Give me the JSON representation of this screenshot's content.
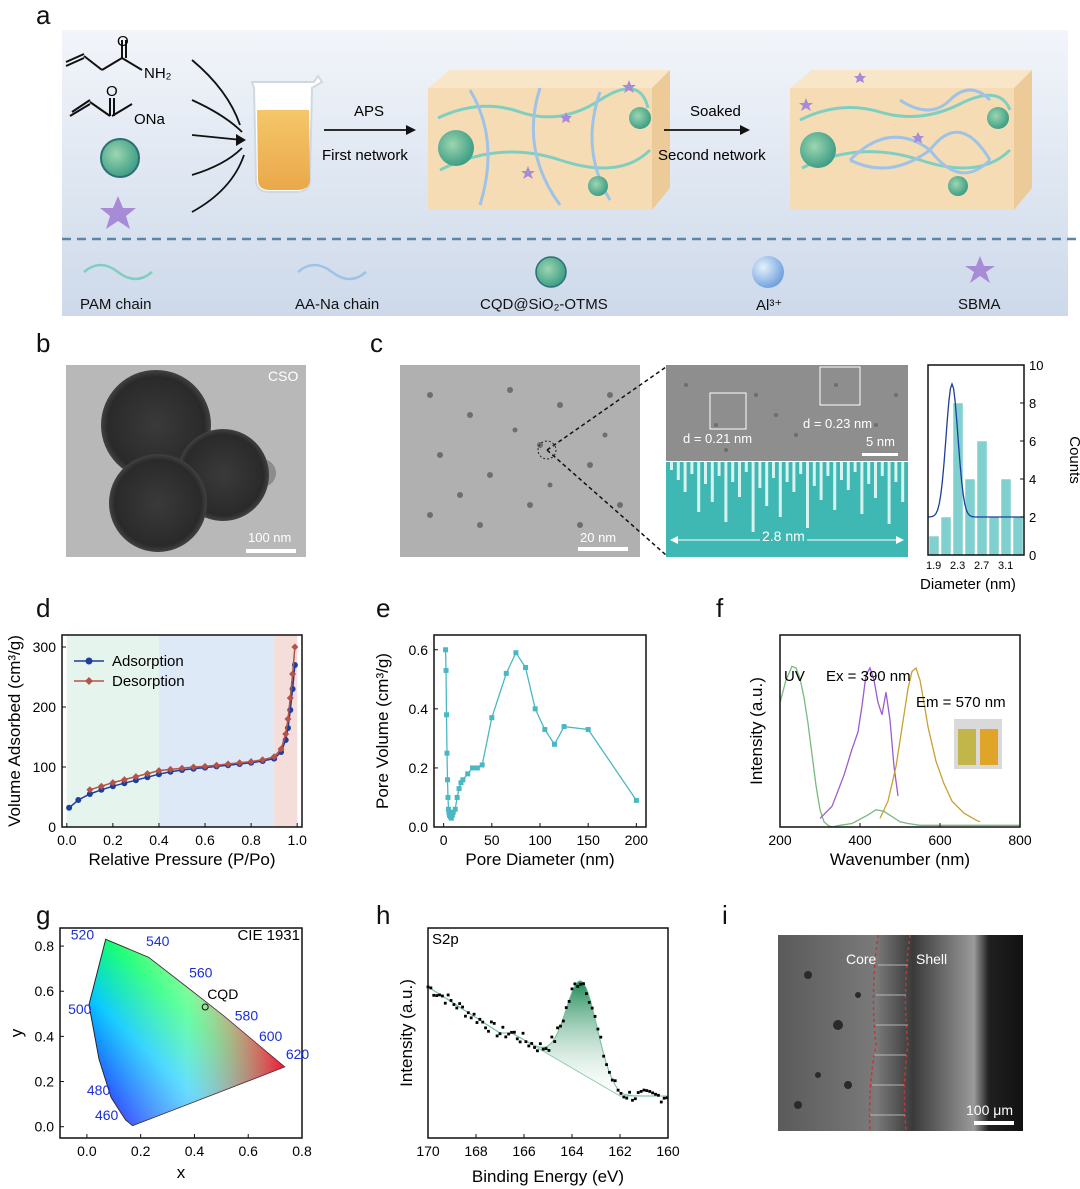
{
  "panels": {
    "a": "a",
    "b": "b",
    "c": "c",
    "d": "d",
    "e": "e",
    "f": "f",
    "g": "g",
    "h": "h",
    "i": "i"
  },
  "panel_a": {
    "chem_nh2": "NH₂",
    "chem_o": "O",
    "chem_ona": "ONa",
    "step1_top": "APS",
    "step1_bottom": "First network",
    "step2_top": "Soaked",
    "step2_bottom": "Second network",
    "legend": [
      "PAM chain",
      "AA-Na chain",
      "CQD@SiO₂-OTMS",
      "Al³⁺",
      "SBMA"
    ],
    "colors": {
      "background": "#d6e0ef",
      "gel": "#f6dcb5",
      "pam": "#7fcfc0",
      "aana": "#9ec3e6",
      "star": "#a78bd6",
      "ion": "#8fb8e8",
      "dash": "#5a86a8"
    }
  },
  "panel_b": {
    "tag": "CSO",
    "scale": "100 nm"
  },
  "panel_c": {
    "scale_main": "20 nm",
    "d1": "d = 0.21 nm",
    "d2": "d = 0.23 nm",
    "scale_hr": "5 nm",
    "profile": "2.8 nm"
  },
  "chart_data": [
    {
      "id": "c-hist",
      "type": "bar",
      "xlabel": "Diameter (nm)",
      "ylabel": "Counts",
      "xticks": [
        "1.9",
        "2.3",
        "2.7",
        "3.1"
      ],
      "yticks": [
        "0",
        "2",
        "4",
        "6",
        "8",
        "10"
      ],
      "ylim": [
        0,
        10
      ],
      "bins": [
        1.9,
        2.1,
        2.3,
        2.5,
        2.7,
        2.9,
        3.1,
        3.3
      ],
      "values": [
        1,
        2,
        8,
        4,
        6,
        2,
        4,
        2
      ]
    },
    {
      "id": "d-bet",
      "type": "line",
      "xlabel": "Relative Pressure (P/Po)",
      "ylabel": "Volume Adsorbed (cm³/g)",
      "xlim": [
        0,
        1.0
      ],
      "ylim": [
        0,
        320
      ],
      "xticks": [
        "0.0",
        "0.2",
        "0.4",
        "0.6",
        "0.8",
        "1.0"
      ],
      "yticks": [
        "0",
        "100",
        "200",
        "300"
      ],
      "regions": [
        {
          "from": 0,
          "to": 0.4,
          "color": "#e6f4ee"
        },
        {
          "from": 0.4,
          "to": 0.9,
          "color": "#dde9f7"
        },
        {
          "from": 0.9,
          "to": 1.0,
          "color": "#f5ddd9"
        }
      ],
      "series": [
        {
          "name": "Adsorption",
          "color": "#1e3f9a",
          "x": [
            0.01,
            0.05,
            0.1,
            0.15,
            0.2,
            0.25,
            0.3,
            0.35,
            0.4,
            0.45,
            0.5,
            0.55,
            0.6,
            0.65,
            0.7,
            0.75,
            0.8,
            0.85,
            0.9,
            0.93,
            0.95,
            0.96,
            0.97,
            0.98,
            0.99
          ],
          "y": [
            32,
            45,
            55,
            62,
            68,
            73,
            78,
            83,
            88,
            92,
            95,
            97,
            99,
            101,
            103,
            105,
            107,
            110,
            114,
            125,
            145,
            165,
            195,
            230,
            270
          ]
        },
        {
          "name": "Desorption",
          "color": "#b5524a",
          "x": [
            0.1,
            0.15,
            0.2,
            0.25,
            0.3,
            0.35,
            0.4,
            0.45,
            0.5,
            0.55,
            0.6,
            0.65,
            0.7,
            0.75,
            0.8,
            0.85,
            0.9,
            0.93,
            0.95,
            0.96,
            0.97,
            0.98,
            0.99
          ],
          "y": [
            62,
            68,
            74,
            79,
            84,
            89,
            94,
            96,
            98,
            100,
            101,
            103,
            105,
            107,
            109,
            112,
            117,
            130,
            155,
            180,
            215,
            255,
            300
          ]
        }
      ]
    },
    {
      "id": "e-pore",
      "type": "line",
      "xlabel": "Pore Diameter (nm)",
      "ylabel": "Pore Volume (cm³/g)",
      "xlim": [
        -10,
        210
      ],
      "ylim": [
        0,
        0.65
      ],
      "xticks": [
        "0",
        "50",
        "100",
        "150",
        "200"
      ],
      "yticks": [
        "0.0",
        "0.2",
        "0.4",
        "0.6"
      ],
      "series": [
        {
          "name": "",
          "color": "#4ab8c4",
          "x": [
            2,
            2.5,
            3,
            3.5,
            4,
            4.5,
            5,
            5.5,
            6,
            7,
            8,
            9,
            10,
            12,
            14,
            16,
            18,
            20,
            25,
            30,
            35,
            40,
            50,
            65,
            75,
            85,
            95,
            105,
            115,
            125,
            150,
            200
          ],
          "y": [
            0.6,
            0.53,
            0.38,
            0.25,
            0.16,
            0.1,
            0.06,
            0.05,
            0.04,
            0.035,
            0.03,
            0.04,
            0.05,
            0.06,
            0.1,
            0.13,
            0.15,
            0.16,
            0.18,
            0.2,
            0.2,
            0.21,
            0.37,
            0.52,
            0.59,
            0.54,
            0.4,
            0.33,
            0.28,
            0.34,
            0.33,
            0.09
          ]
        }
      ]
    },
    {
      "id": "f-spectra",
      "type": "line",
      "xlabel": "Wavenumber (nm)",
      "ylabel": "Intensity (a.u.)",
      "xlim": [
        200,
        800
      ],
      "xticks": [
        "200",
        "400",
        "600",
        "800"
      ],
      "labels": {
        "uv": "UV",
        "ex": "Ex = 390 nm",
        "em": "Em = 570 nm"
      },
      "series": [
        {
          "name": "UV",
          "color": "#7ab97f",
          "x": [
            200,
            215,
            230,
            240,
            250,
            260,
            270,
            280,
            290,
            300,
            310,
            320,
            330,
            350,
            380,
            420,
            440,
            460,
            480,
            500,
            520,
            550,
            600,
            650,
            700,
            800
          ],
          "y": [
            0.72,
            0.85,
            0.93,
            0.92,
            0.86,
            0.75,
            0.6,
            0.42,
            0.24,
            0.1,
            0.03,
            0.01,
            0.0,
            0.01,
            0.02,
            0.07,
            0.1,
            0.09,
            0.06,
            0.03,
            0.02,
            0.01,
            0.01,
            0.01,
            0.01,
            0.01
          ]
        },
        {
          "name": "Ex",
          "color": "#9a5ccf",
          "x": [
            300,
            330,
            360,
            380,
            395,
            405,
            415,
            425,
            435,
            445,
            455,
            465,
            475,
            485,
            495
          ],
          "y": [
            0.05,
            0.12,
            0.3,
            0.45,
            0.55,
            0.7,
            0.88,
            0.92,
            0.85,
            0.72,
            0.65,
            0.78,
            0.62,
            0.35,
            0.18
          ]
        },
        {
          "name": "Em",
          "color": "#c9a030",
          "x": [
            450,
            470,
            490,
            500,
            510,
            520,
            530,
            540,
            550,
            560,
            570,
            590,
            610,
            630,
            660,
            690,
            700
          ],
          "y": [
            0.05,
            0.15,
            0.35,
            0.5,
            0.65,
            0.8,
            0.9,
            0.92,
            0.85,
            0.72,
            0.58,
            0.38,
            0.25,
            0.15,
            0.08,
            0.04,
            0.03
          ]
        }
      ]
    },
    {
      "id": "g-cie",
      "type": "scatter",
      "title": "CIE 1931",
      "xlabel": "x",
      "ylabel": "y",
      "xlim": [
        -0.1,
        0.8
      ],
      "ylim": [
        -0.05,
        0.88
      ],
      "xticks": [
        "0.0",
        "0.2",
        "0.4",
        "0.6",
        "0.8"
      ],
      "yticks": [
        "0.0",
        "0.1",
        "0.2",
        "0.3",
        "0.4",
        "0.5",
        "0.6",
        "0.7",
        "0.8"
      ],
      "wavelengths": [
        "460",
        "480",
        "500",
        "520",
        "540",
        "560",
        "580",
        "600",
        "620"
      ],
      "point": {
        "label": "CQD",
        "x": 0.44,
        "y": 0.53
      }
    },
    {
      "id": "h-xps",
      "type": "scatter",
      "title": "S2p",
      "xlabel": "Binding Energy (eV)",
      "ylabel": "Intensity (a.u.)",
      "xlim": [
        170,
        160
      ],
      "xticks": [
        "170",
        "168",
        "166",
        "164",
        "162",
        "160"
      ],
      "data_color": "#000000",
      "fill_color": "#1e8a57"
    }
  ],
  "panel_i": {
    "core": "Core",
    "shell": "Shell",
    "scale": "100 μm"
  }
}
